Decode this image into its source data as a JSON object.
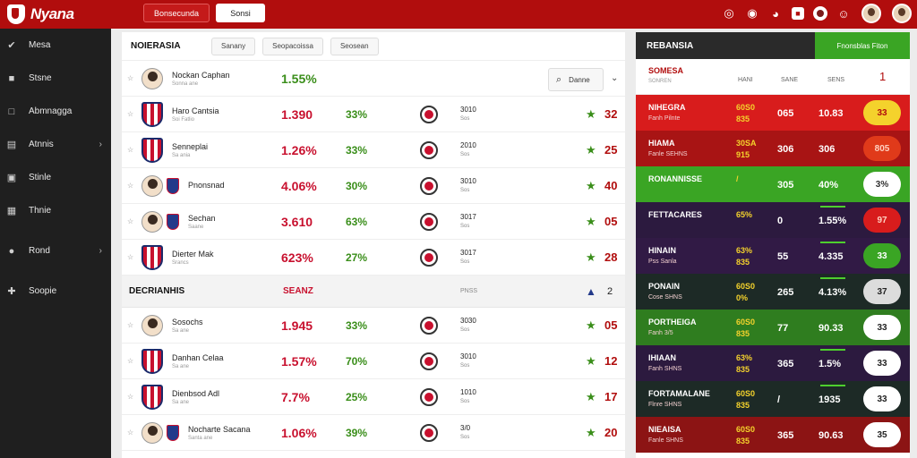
{
  "app": {
    "logo_text": "Nyana"
  },
  "topbar": {
    "button1": "Bonsecunda",
    "button2": "Sonsi",
    "icons": [
      "target-icon",
      "flame-icon",
      "ball-icon",
      "news-icon",
      "bell-icon",
      "user-icon"
    ]
  },
  "sidebar": {
    "items": [
      {
        "label": "Mesa",
        "icon": "wrench-icon",
        "chevron": false
      },
      {
        "label": "Stsne",
        "icon": "cube-icon",
        "chevron": false
      },
      {
        "label": "Abmnagga",
        "icon": "shield-icon",
        "chevron": false
      },
      {
        "label": "Atnnis",
        "icon": "chart-icon",
        "chevron": true
      },
      {
        "label": "Stinle",
        "icon": "grid-icon",
        "chevron": false
      },
      {
        "label": "Thnie",
        "icon": "bars-icon",
        "chevron": false
      },
      {
        "label": "Rond",
        "icon": "coin-icon",
        "chevron": true
      },
      {
        "label": "Soopie",
        "icon": "plus-icon",
        "chevron": false
      }
    ]
  },
  "main": {
    "title": "NOIERASIA",
    "chips": [
      "Sanany",
      "Seopacoissa",
      "Seosean"
    ],
    "search_label": "Danne",
    "rows1": [
      {
        "name": "Nockan Caphan",
        "sub": "Sonna ane",
        "pct1": "1.55%",
        "pct1_color": "green",
        "pct2": "",
        "club": false,
        "year": "",
        "year2": "",
        "num": "",
        "avatar": "face"
      },
      {
        "name": "Haro Cantsia",
        "sub": "Soi Fatlio",
        "pct1": "1.390",
        "pct1_color": "red",
        "pct2": "33%",
        "club": true,
        "year": "3010",
        "year2": "Sos",
        "num": "32",
        "avatar": "shield"
      },
      {
        "name": "Senneplai",
        "sub": "Sa ania",
        "pct1": "1.26%",
        "pct1_color": "red",
        "pct2": "33%",
        "club": true,
        "year": "2010",
        "year2": "Sos",
        "num": "25",
        "avatar": "shield"
      },
      {
        "name": "Pnonsnad",
        "sub": "",
        "pct1": "4.06%",
        "pct1_color": "red",
        "pct2": "30%",
        "club": true,
        "year": "3010",
        "year2": "Sos",
        "num": "40",
        "avatar": "face"
      },
      {
        "name": "Sechan",
        "sub": "Saane",
        "pct1": "3.610",
        "pct1_color": "red",
        "pct2": "63%",
        "club": true,
        "year": "3017",
        "year2": "Sos",
        "num": "05",
        "avatar": "face"
      },
      {
        "name": "Dierter Mak",
        "sub": "Srancs",
        "pct1": "623%",
        "pct1_color": "red",
        "pct2": "27%",
        "club": true,
        "year": "3017",
        "year2": "Sos",
        "num": "28",
        "avatar": "shield"
      }
    ],
    "section": {
      "title": "DECRIANHIS",
      "mid": "SEANZ",
      "right": "PNSS",
      "num": "2"
    },
    "rows2": [
      {
        "name": "Sosochs",
        "sub": "Sa ane",
        "pct1": "1.945",
        "pct1_color": "red",
        "pct2": "33%",
        "year": "3030",
        "year2": "Sos",
        "num": "05",
        "avatar": "face"
      },
      {
        "name": "Danhan Celaa",
        "sub": "Sa ane",
        "pct1": "1.57%",
        "pct1_color": "red",
        "pct2": "70%",
        "year": "3010",
        "year2": "Sos",
        "num": "12",
        "avatar": "shield"
      },
      {
        "name": "Dienbsod Adl",
        "sub": "Sa ane",
        "pct1": "7.7%",
        "pct1_color": "red",
        "pct2": "25%",
        "year": "1010",
        "year2": "Sos",
        "num": "17",
        "avatar": "shield"
      },
      {
        "name": "Nocharte Sacana",
        "sub": "Santa ane",
        "pct1": "1.06%",
        "pct1_color": "red",
        "pct2": "39%",
        "year": "3/0",
        "year2": "Sos",
        "num": "20",
        "avatar": "face"
      }
    ]
  },
  "right": {
    "title": "REBANSIA",
    "tab": "Fnonsblas Fiton",
    "header": {
      "name": "SOMESA",
      "name_sub": "SONREN",
      "col1": "HANI",
      "col2": "SANE",
      "col3": "SENS",
      "num": "1"
    },
    "rows": [
      {
        "name": "NIHEGRA",
        "sub": "Fanh Pilnte",
        "v1": "60S0",
        "v1s": "835",
        "v2": "065",
        "v3": "10.83",
        "pill": "33",
        "bg": "#d81c1c",
        "pill_bg": "#f4d22c",
        "pill_fg": "#b10d0d",
        "bar": false
      },
      {
        "name": "HIAMA",
        "sub": "Fanle SEHNS",
        "v1": "30SA",
        "v1s": "915",
        "v2": "306",
        "v3": "306",
        "pill": "805",
        "bg": "#a81414",
        "pill_bg": "#e03a1a",
        "pill_fg": "#ffd0c0",
        "bar": false
      },
      {
        "name": "RONANNISSE",
        "sub": "",
        "v1": "/",
        "v1s": "",
        "v2": "305",
        "v3": "40%",
        "pill": "3%",
        "bg": "#3aa524",
        "pill_bg": "#ffffff",
        "pill_fg": "#333333",
        "bar": false
      },
      {
        "name": "FETTACARES",
        "sub": "",
        "v1": "65%",
        "v1s": "",
        "v2": "0",
        "v3": "1.55%",
        "pill": "97",
        "bg": "#2c1a3f",
        "pill_bg": "#d81c1c",
        "pill_fg": "#ffd0c0",
        "bar": true
      },
      {
        "name": "HINAIN",
        "sub": "Pss Sanla",
        "v1": "63%",
        "v1s": "835",
        "v2": "55",
        "v3": "4.335",
        "pill": "33",
        "bg": "#311a45",
        "pill_bg": "#3aa524",
        "pill_fg": "#ffffff",
        "bar": true
      },
      {
        "name": "PONAIN",
        "sub": "Cose SHNS",
        "v1": "60S0",
        "v1s": "0%",
        "v2": "265",
        "v3": "4.13%",
        "pill": "37",
        "bg": "#1d2a26",
        "pill_bg": "#dcdcdc",
        "pill_fg": "#222222",
        "bar": true
      },
      {
        "name": "PORTHEIGA",
        "sub": "Fanh 3/5",
        "v1": "60S0",
        "v1s": "835",
        "v2": "77",
        "v3": "90.33",
        "pill": "33",
        "bg": "#2f7d1f",
        "pill_bg": "#ffffff",
        "pill_fg": "#222222",
        "bar": false
      },
      {
        "name": "IHIAAN",
        "sub": "Fanh SHNS",
        "v1": "63%",
        "v1s": "835",
        "v2": "365",
        "v3": "1.5%",
        "pill": "33",
        "bg": "#2c1a3f",
        "pill_bg": "#ffffff",
        "pill_fg": "#222222",
        "bar": true
      },
      {
        "name": "FORTAMALANE",
        "sub": "Flnre SHNS",
        "v1": "60S0",
        "v1s": "835",
        "v2": "/",
        "v3": "1935",
        "pill": "33",
        "bg": "#1d2a26",
        "pill_bg": "#ffffff",
        "pill_fg": "#222222",
        "bar": true
      },
      {
        "name": "NIEAISA",
        "sub": "Fanle SHNS",
        "v1": "60S0",
        "v1s": "835",
        "v2": "365",
        "v3": "90.63",
        "pill": "35",
        "bg": "#8c1414",
        "pill_bg": "#ffffff",
        "pill_fg": "#222222",
        "bar": false
      }
    ]
  }
}
